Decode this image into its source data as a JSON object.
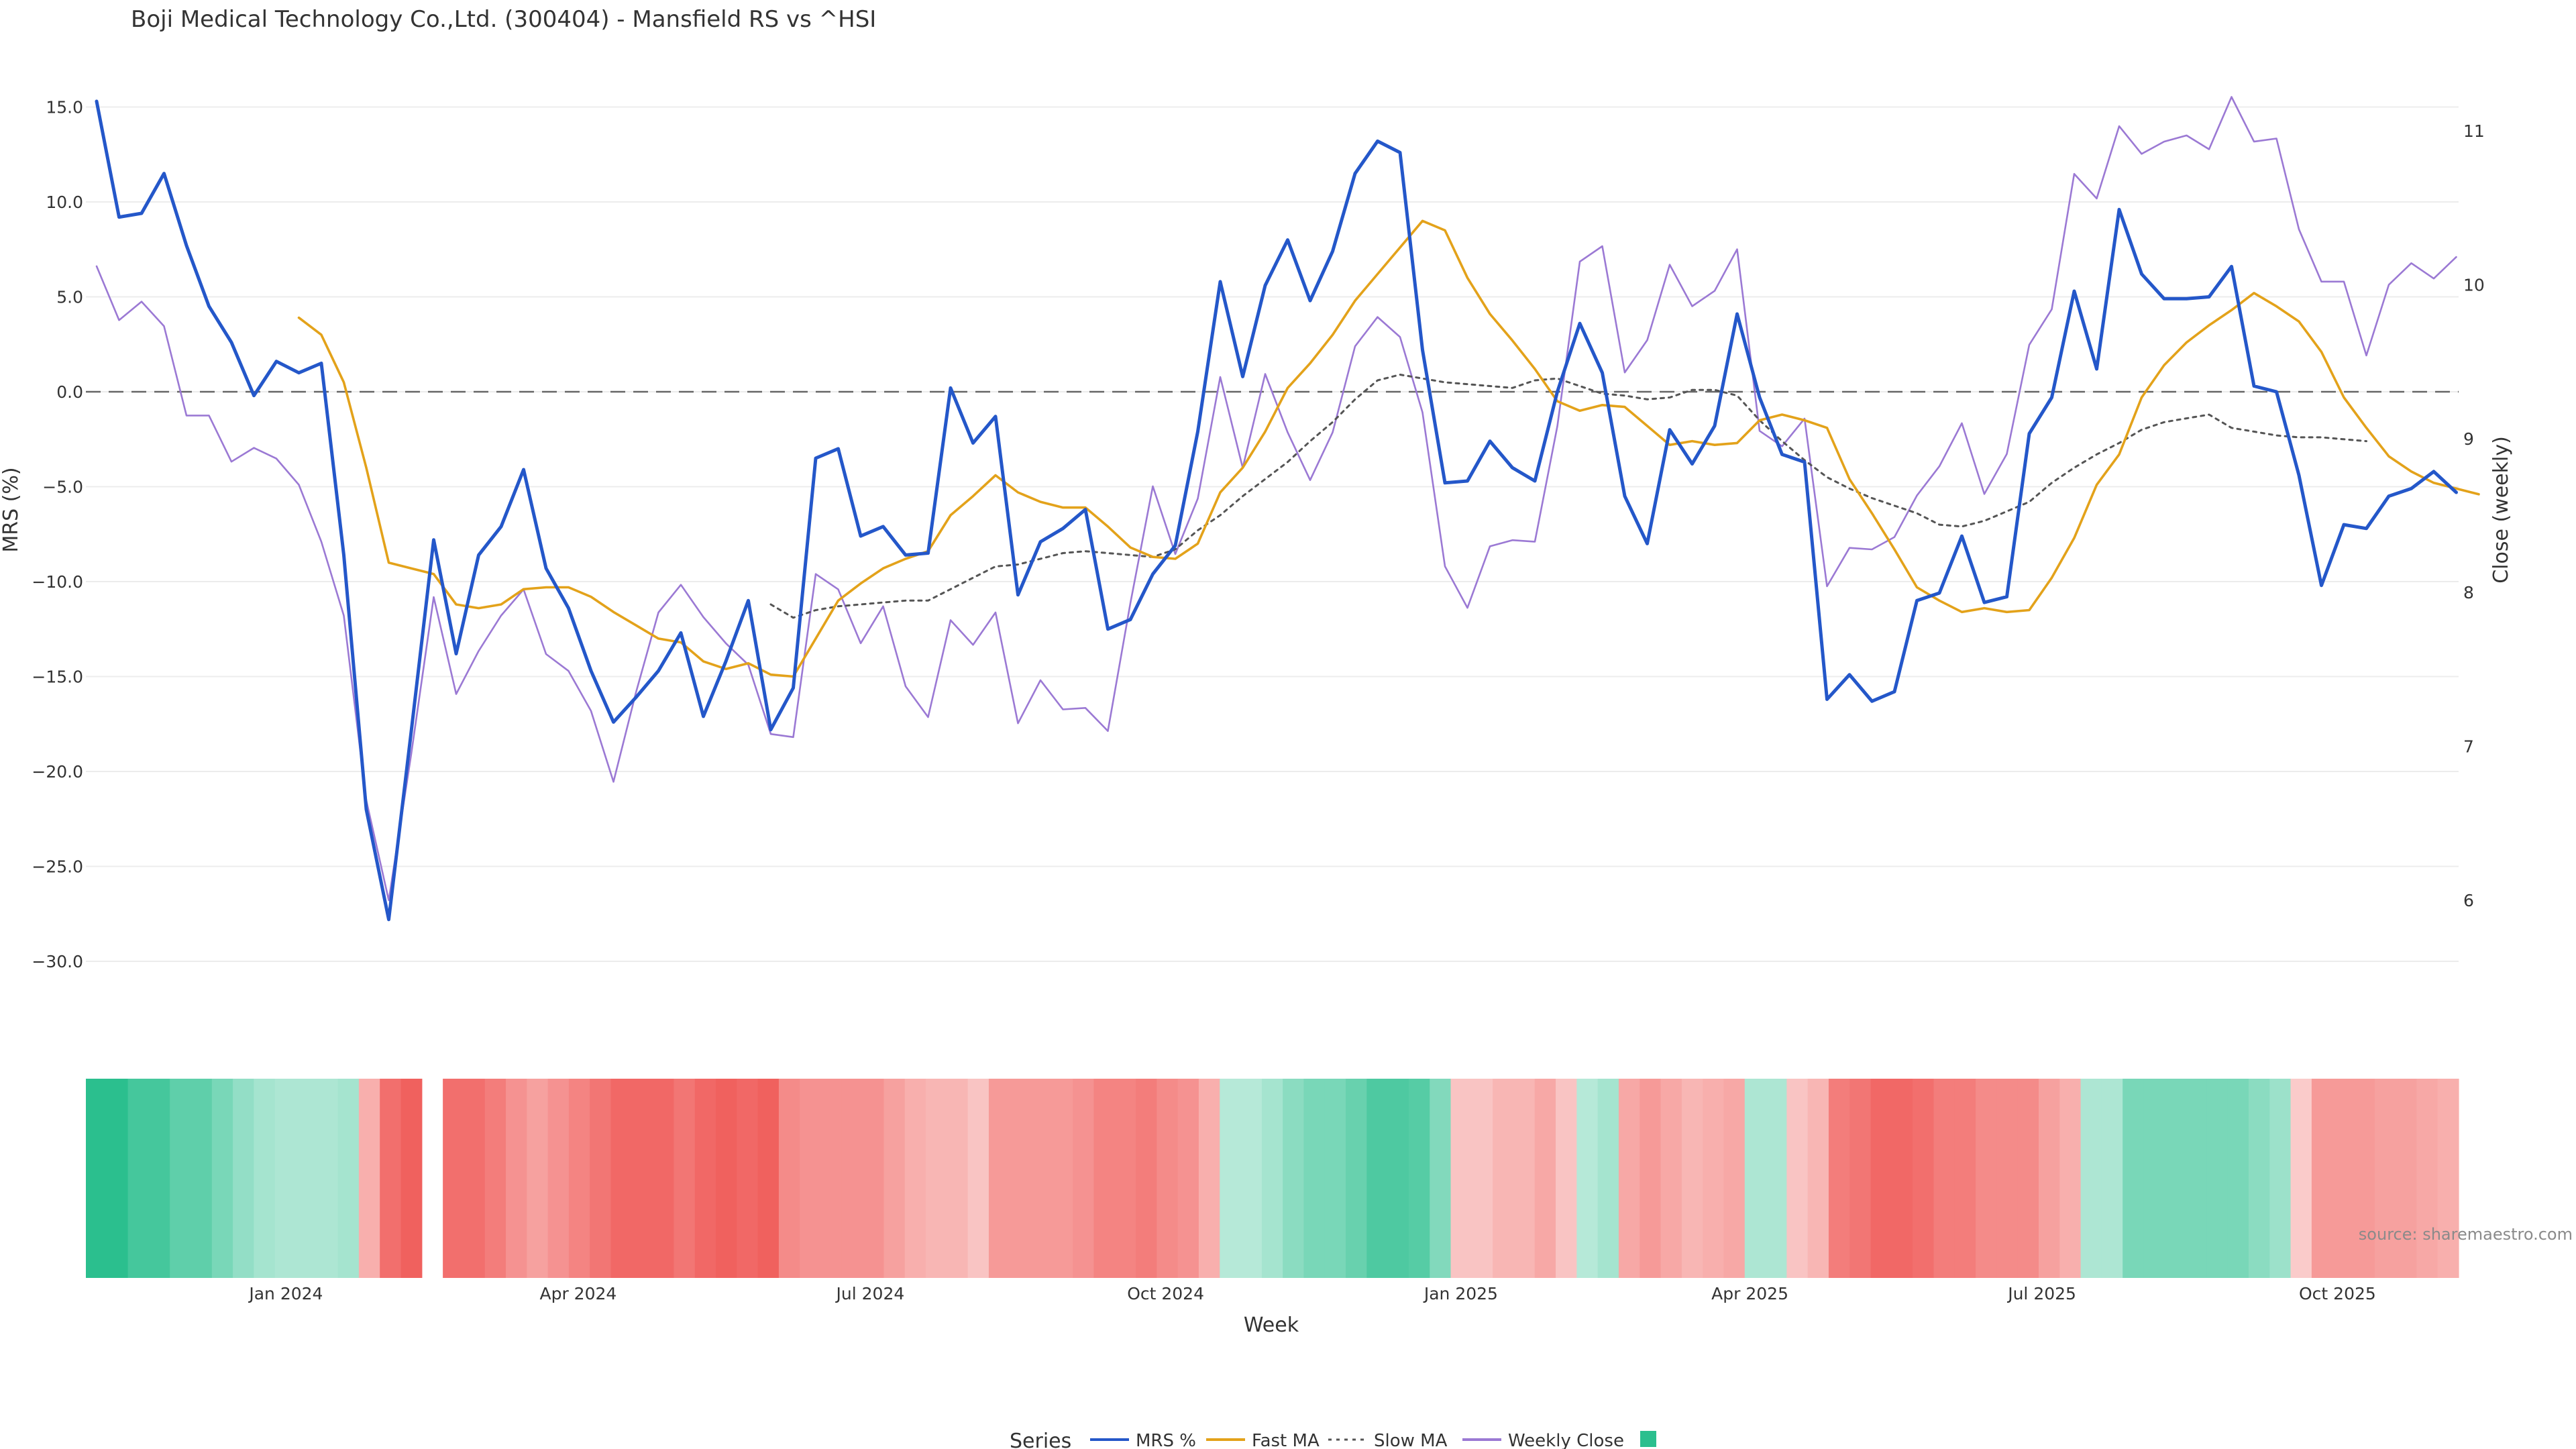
{
  "chart_data": {
    "type": "line",
    "title": "Boji Medical Technology Co.,Ltd. (300404) - Mansfield RS vs ^HSI",
    "xlabel": "Week",
    "ylabel": "MRS (%)",
    "y2label": "Close (weekly)",
    "ylim": [
      -30,
      15
    ],
    "y2lim": [
      6,
      11
    ],
    "yticks": [
      15.0,
      10.0,
      5.0,
      0.0,
      -5.0,
      -10.0,
      -15.0,
      -20.0,
      -25.0,
      -30.0
    ],
    "ytick_labels": [
      "15.0",
      "10.0",
      "5.0",
      "0.0",
      "−5.0",
      "−10.0",
      "−15.0",
      "−20.0",
      "−25.0",
      "−30.0"
    ],
    "y2ticks": [
      11,
      10,
      9,
      8,
      7,
      6
    ],
    "x_start": "2023-11-03",
    "x_step_days": 7,
    "x_ticks": [
      {
        "date": "2024-01-01",
        "label": "Jan 2024"
      },
      {
        "date": "2024-04-01",
        "label": "Apr 2024"
      },
      {
        "date": "2024-07-01",
        "label": "Jul 2024"
      },
      {
        "date": "2024-10-01",
        "label": "Oct 2024"
      },
      {
        "date": "2025-01-01",
        "label": "Jan 2025"
      },
      {
        "date": "2025-04-01",
        "label": "Apr 2025"
      },
      {
        "date": "2025-07-01",
        "label": "Jul 2025"
      },
      {
        "date": "2025-10-01",
        "label": "Oct 2025"
      }
    ],
    "zero_line": 0,
    "grid": true,
    "legend_position": "bottom",
    "legend_title": "Series",
    "source": "source: sharemaestro.com",
    "series": [
      {
        "name": "MRS %",
        "color": "#2457c9",
        "style": "solid",
        "axis": "left",
        "start_index": 0,
        "values": [
          15.3,
          9.2,
          9.4,
          11.5,
          7.7,
          4.5,
          2.6,
          -0.2,
          1.6,
          1.0,
          1.5,
          -8.6,
          -22.0,
          -27.8,
          -17.9,
          -7.8,
          -13.8,
          -8.6,
          -7.1,
          -4.1,
          -9.3,
          -11.4,
          -14.7,
          -17.4,
          -16.1,
          -14.7,
          -12.7,
          -17.1,
          -14.2,
          -11.0,
          -17.8,
          -15.6,
          -3.5,
          -3.0,
          -7.6,
          -7.1,
          -8.6,
          -8.5,
          0.2,
          -2.7,
          -1.3,
          -10.7,
          -7.9,
          -7.2,
          -6.2,
          -12.5,
          -12.0,
          -9.6,
          -8.1,
          -2.1,
          5.8,
          0.8,
          5.6,
          8.0,
          4.8,
          7.4,
          11.5,
          13.2,
          12.6,
          2.2,
          -4.8,
          -4.7,
          -2.6,
          -4.0,
          -4.7,
          0.0,
          3.6,
          1.0,
          -5.5,
          -8.0,
          -2.0,
          -3.8,
          -1.8,
          4.1,
          -0.3,
          -3.3,
          -3.7,
          -16.2,
          -14.9,
          -16.3,
          -15.8,
          -11.0,
          -10.6,
          -7.6,
          -11.1,
          -10.8,
          -2.2,
          -0.3,
          5.3,
          1.2,
          9.6,
          6.2,
          4.9,
          4.9,
          5.0,
          6.6,
          0.3,
          0.0,
          -4.4,
          -10.2,
          -7.0,
          -7.2,
          -5.5,
          -5.1,
          -4.2,
          -5.3
        ]
      },
      {
        "name": "Fast MA",
        "color": "#e3a21a",
        "style": "solid",
        "axis": "left",
        "start_index": 9,
        "values": [
          3.9,
          3.0,
          0.5,
          -4.0,
          -9.0,
          -9.3,
          -9.6,
          -11.2,
          -11.4,
          -11.2,
          -10.4,
          -10.3,
          -10.3,
          -10.8,
          -11.6,
          -12.3,
          -13.0,
          -13.2,
          -14.2,
          -14.6,
          -14.3,
          -14.9,
          -15.0,
          -13.0,
          -11.0,
          -10.1,
          -9.3,
          -8.8,
          -8.4,
          -6.5,
          -5.5,
          -4.4,
          -5.3,
          -5.8,
          -6.1,
          -6.1,
          -7.1,
          -8.2,
          -8.7,
          -8.8,
          -8.0,
          -5.3,
          -4.0,
          -2.1,
          0.2,
          1.5,
          3.0,
          4.8,
          6.2,
          7.6,
          9.0,
          8.5,
          6.0,
          4.1,
          2.7,
          1.2,
          -0.5,
          -1.0,
          -0.7,
          -0.8,
          -1.8,
          -2.8,
          -2.6,
          -2.8,
          -2.7,
          -1.5,
          -1.2,
          -1.5,
          -1.9,
          -4.6,
          -6.4,
          -8.3,
          -10.3,
          -11.0,
          -11.6,
          -11.4,
          -11.6,
          -11.5,
          -9.8,
          -7.7,
          -4.9,
          -3.3,
          -0.3,
          1.4,
          2.6,
          3.5,
          4.3,
          5.2,
          4.5,
          3.7,
          2.1,
          -0.3,
          -1.9,
          -3.4,
          -4.2,
          -4.8,
          -5.1,
          -5.4
        ]
      },
      {
        "name": "Slow MA",
        "color": "#555555",
        "style": "dotted",
        "axis": "left",
        "start_index": 30,
        "values": [
          -11.2,
          -11.9,
          -11.5,
          -11.3,
          -11.2,
          -11.1,
          -11.0,
          -11.0,
          -10.4,
          -9.8,
          -9.2,
          -9.1,
          -8.8,
          -8.5,
          -8.4,
          -8.5,
          -8.6,
          -8.7,
          -8.3,
          -7.3,
          -6.5,
          -5.5,
          -4.6,
          -3.7,
          -2.6,
          -1.6,
          -0.4,
          0.6,
          0.9,
          0.7,
          0.5,
          0.4,
          0.3,
          0.2,
          0.6,
          0.7,
          0.3,
          -0.1,
          -0.2,
          -0.4,
          -0.3,
          0.1,
          0.1,
          -0.2,
          -1.5,
          -2.6,
          -3.6,
          -4.5,
          -5.1,
          -5.6,
          -6.0,
          -6.4,
          -7.0,
          -7.1,
          -6.8,
          -6.3,
          -5.8,
          -4.8,
          -4.0,
          -3.3,
          -2.7,
          -2.0,
          -1.6,
          -1.4,
          -1.2,
          -1.9,
          -2.1,
          -2.3,
          -2.4,
          -2.4,
          -2.5,
          -2.6
        ]
      },
      {
        "name": "Weekly Close",
        "color": "#9b79d4",
        "style": "solid",
        "axis": "right",
        "start_index": 0,
        "values": [
          10.12,
          9.77,
          9.89,
          9.73,
          9.15,
          9.15,
          8.85,
          8.94,
          8.87,
          8.7,
          8.33,
          7.85,
          6.65,
          6.0,
          6.95,
          7.97,
          7.34,
          7.62,
          7.85,
          8.02,
          7.6,
          7.49,
          7.23,
          6.77,
          7.35,
          7.87,
          8.05,
          7.84,
          7.67,
          7.53,
          7.08,
          7.06,
          8.12,
          8.02,
          7.67,
          7.91,
          7.39,
          7.19,
          7.82,
          7.66,
          7.87,
          7.15,
          7.43,
          7.24,
          7.25,
          7.1,
          7.93,
          8.69,
          8.25,
          8.61,
          9.4,
          8.81,
          9.42,
          9.04,
          8.73,
          9.04,
          9.6,
          9.79,
          9.66,
          9.17,
          8.17,
          7.9,
          8.3,
          8.34,
          8.33,
          9.08,
          10.15,
          10.25,
          9.43,
          9.64,
          10.13,
          9.86,
          9.96,
          10.23,
          9.05,
          8.95,
          9.13,
          8.04,
          8.29,
          8.28,
          8.36,
          8.63,
          8.82,
          9.1,
          8.64,
          8.9,
          9.61,
          9.84,
          10.72,
          10.56,
          11.03,
          10.85,
          10.93,
          10.97,
          10.88,
          11.22,
          10.93,
          10.95,
          10.36,
          10.02,
          10.02,
          9.54,
          10.0,
          10.14,
          10.04,
          10.18
        ]
      }
    ],
    "heatmap_values": [
      1.0,
      1.0,
      0.85,
      0.85,
      0.7,
      0.7,
      0.55,
      0.4,
      0.3,
      0.25,
      0.25,
      0.25,
      0.3,
      -0.35,
      -0.8,
      -0.9,
      null,
      -0.8,
      -0.8,
      -0.7,
      -0.55,
      -0.45,
      -0.55,
      -0.65,
      -0.75,
      -0.85,
      -0.85,
      -0.85,
      -0.75,
      -0.85,
      -0.9,
      -0.85,
      -0.9,
      -0.6,
      -0.55,
      -0.55,
      -0.55,
      -0.55,
      -0.45,
      -0.35,
      -0.3,
      -0.3,
      -0.2,
      -0.5,
      -0.5,
      -0.5,
      -0.5,
      -0.55,
      -0.65,
      -0.65,
      -0.7,
      -0.6,
      -0.55,
      -0.35,
      0.2,
      0.2,
      0.3,
      0.45,
      0.55,
      0.55,
      0.65,
      0.8,
      0.8,
      0.75,
      0.5,
      -0.2,
      -0.2,
      -0.3,
      -0.3,
      -0.4,
      -0.2,
      0.2,
      0.3,
      -0.4,
      -0.5,
      -0.4,
      -0.3,
      -0.35,
      -0.4,
      0.25,
      0.25,
      -0.2,
      -0.3,
      -0.7,
      -0.75,
      -0.85,
      -0.85,
      -0.8,
      -0.7,
      -0.7,
      -0.6,
      -0.6,
      -0.6,
      -0.45,
      -0.35,
      0.25,
      0.25,
      0.55,
      0.55,
      0.55,
      0.55,
      0.55,
      0.55,
      0.45,
      0.35,
      -0.15,
      -0.5,
      -0.5,
      -0.5,
      -0.45,
      -0.45,
      -0.4,
      -0.35
    ]
  },
  "legend": {
    "title": "Series",
    "items": [
      {
        "label": "MRS %",
        "color": "#2457c9",
        "style": "solid"
      },
      {
        "label": "Fast MA",
        "color": "#e3a21a",
        "style": "solid"
      },
      {
        "label": "Slow MA",
        "color": "#555555",
        "style": "dotted"
      },
      {
        "label": "Weekly Close",
        "color": "#9b79d4",
        "style": "solid"
      },
      {
        "label": "",
        "color": "#2bbf8e",
        "style": "square"
      }
    ]
  },
  "colors": {
    "positive": "#2bbf8e",
    "negative": "#ef5350",
    "zero_line": "#666666",
    "grid": "#ececec"
  }
}
